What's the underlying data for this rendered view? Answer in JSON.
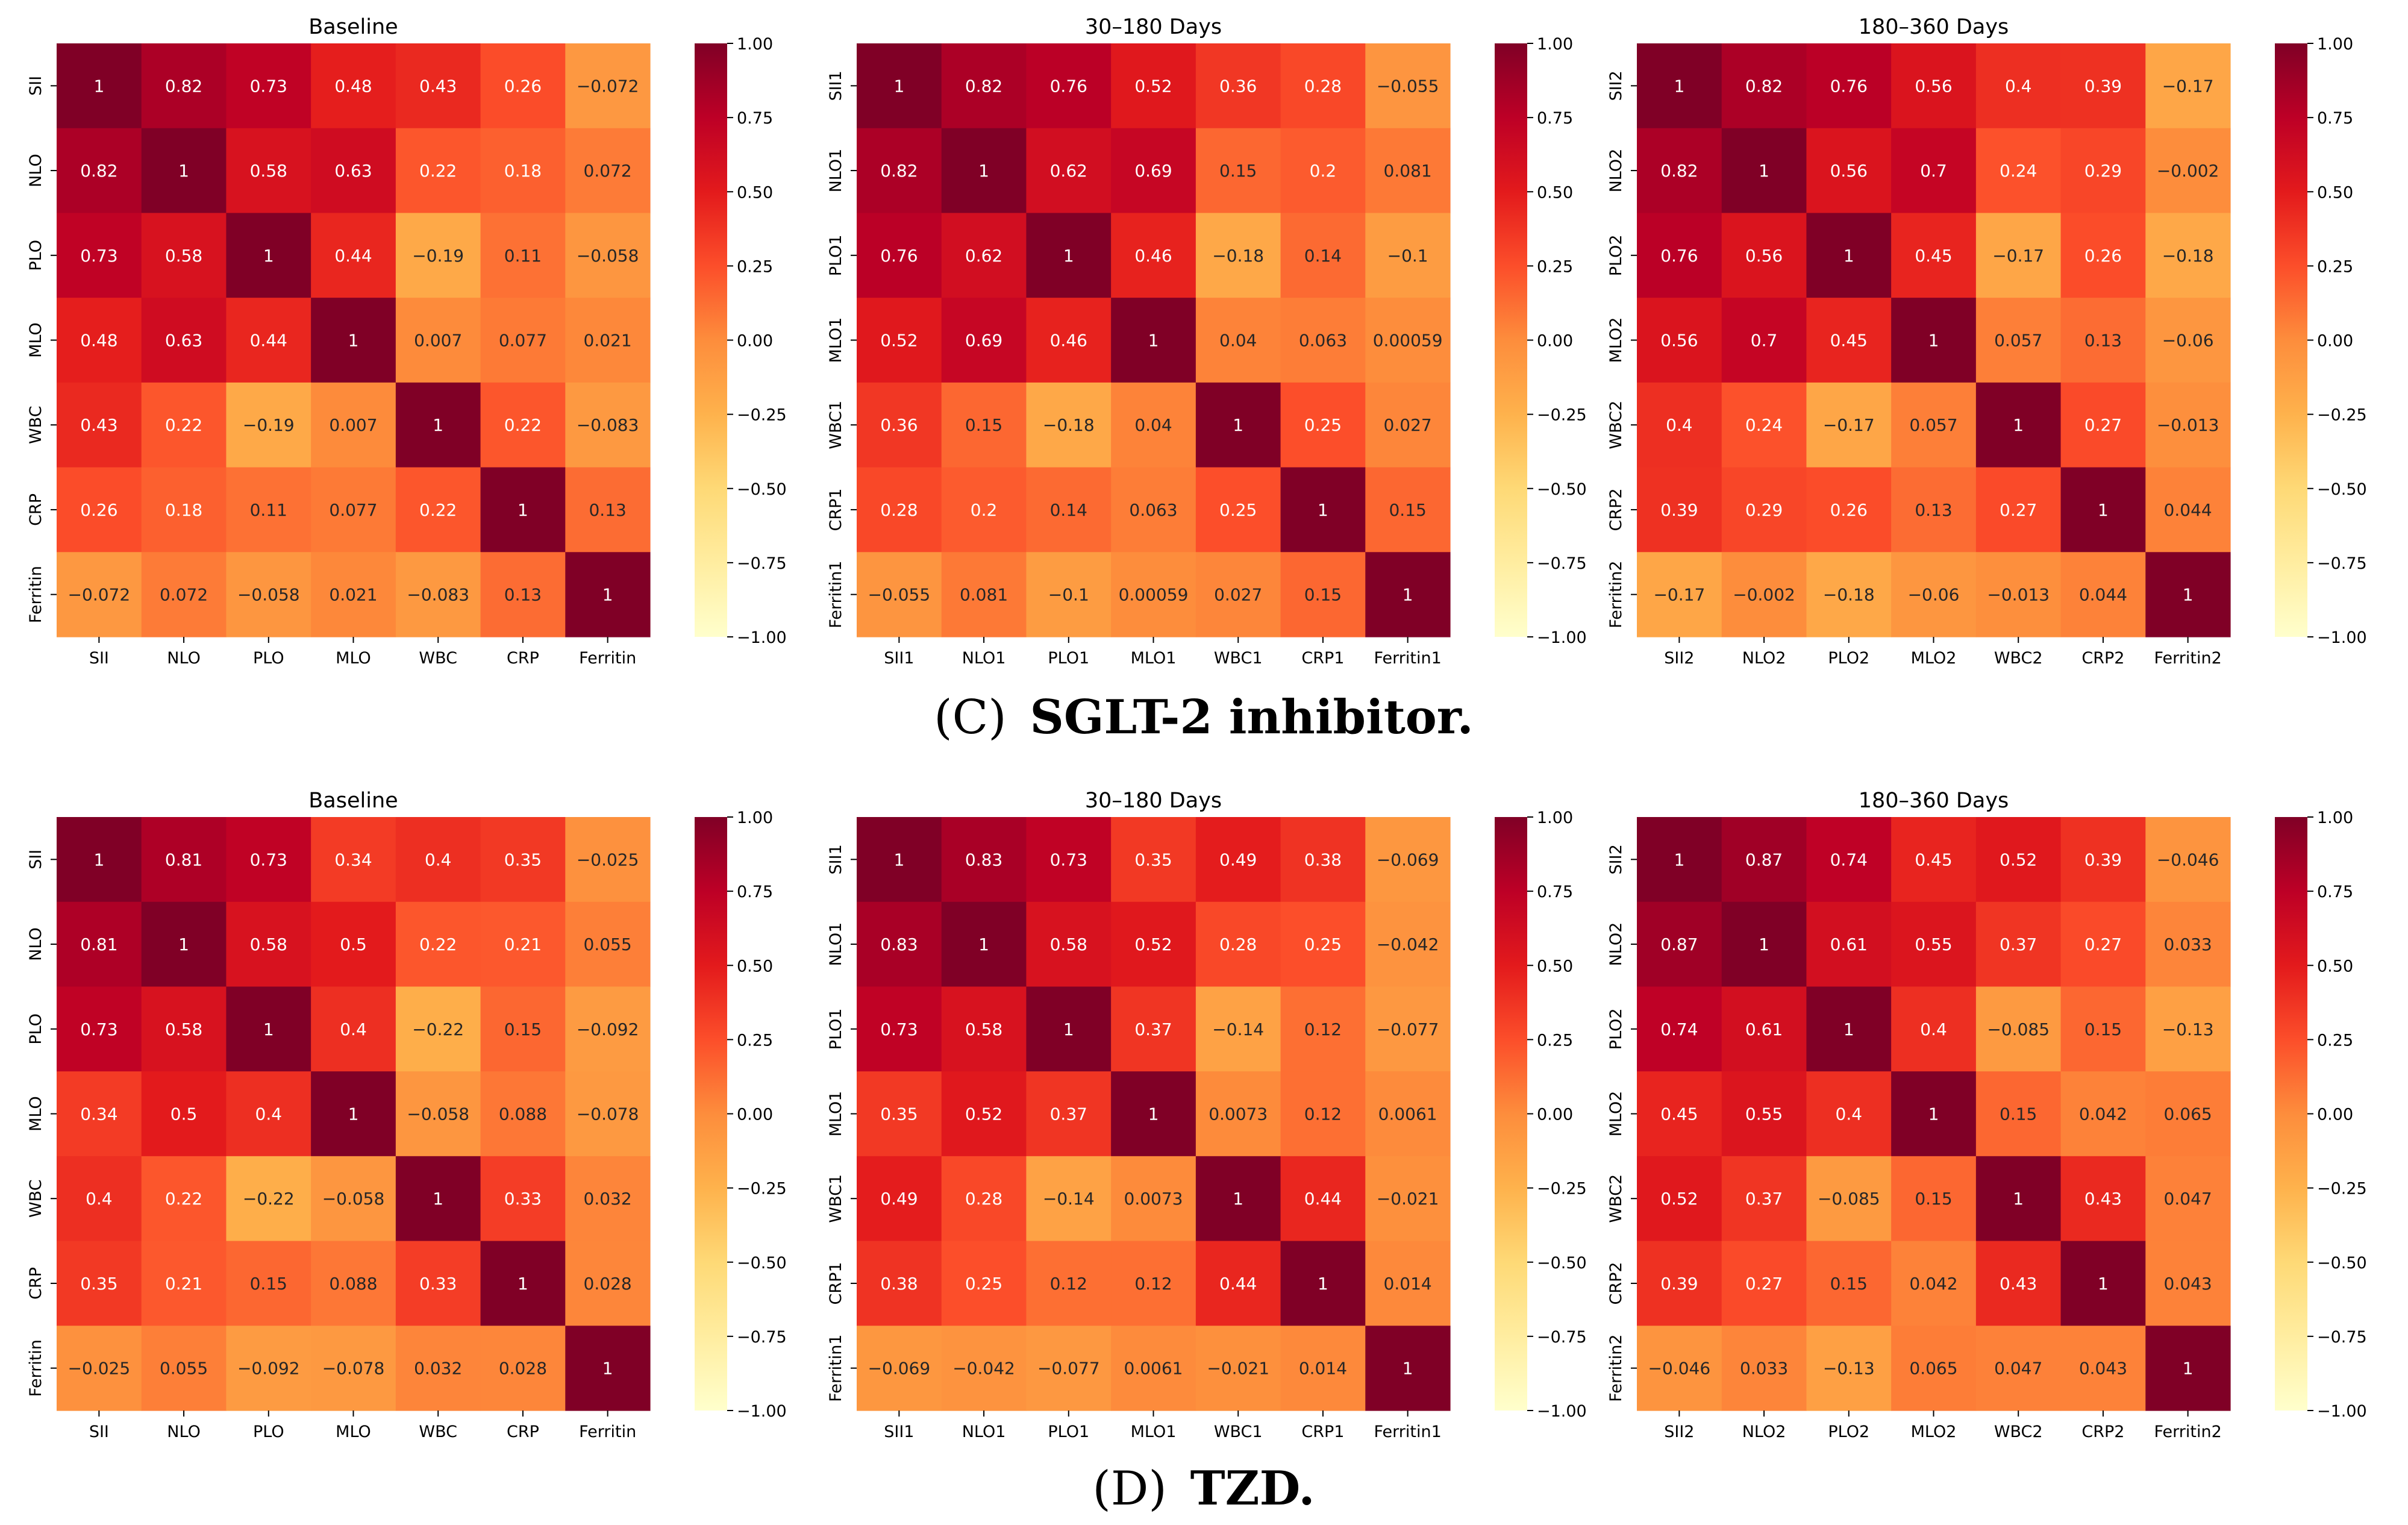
{
  "chart_data": [
    {
      "type": "heatmap",
      "title": "Baseline",
      "panel": "C",
      "rows": [
        "SII",
        "NLO",
        "PLO",
        "MLO",
        "WBC",
        "CRP",
        "Ferritin"
      ],
      "columns": [
        "SII",
        "NLO",
        "PLO",
        "MLO",
        "WBC",
        "CRP",
        "Ferritin"
      ],
      "values": [
        [
          1,
          0.82,
          0.73,
          0.48,
          0.43,
          0.26,
          -0.072
        ],
        [
          0.82,
          1,
          0.58,
          0.63,
          0.22,
          0.18,
          0.072
        ],
        [
          0.73,
          0.58,
          1,
          0.44,
          -0.19,
          0.11,
          -0.058
        ],
        [
          0.48,
          0.63,
          0.44,
          1,
          0.007,
          0.077,
          0.021
        ],
        [
          0.43,
          0.22,
          -0.19,
          0.007,
          1,
          0.22,
          -0.083
        ],
        [
          0.26,
          0.18,
          0.11,
          0.077,
          0.22,
          1,
          0.13
        ],
        [
          -0.072,
          0.072,
          -0.058,
          0.021,
          -0.083,
          0.13,
          1
        ]
      ],
      "labels": [
        [
          "1",
          "0.82",
          "0.73",
          "0.48",
          "0.43",
          "0.26",
          "−0.072"
        ],
        [
          "0.82",
          "1",
          "0.58",
          "0.63",
          "0.22",
          "0.18",
          "0.072"
        ],
        [
          "0.73",
          "0.58",
          "1",
          "0.44",
          "−0.19",
          "0.11",
          "−0.058"
        ],
        [
          "0.48",
          "0.63",
          "0.44",
          "1",
          "0.007",
          "0.077",
          "0.021"
        ],
        [
          "0.43",
          "0.22",
          "−0.19",
          "0.007",
          "1",
          "0.22",
          "−0.083"
        ],
        [
          "0.26",
          "0.18",
          "0.11",
          "0.077",
          "0.22",
          "1",
          "0.13"
        ],
        [
          "−0.072",
          "0.072",
          "−0.058",
          "0.021",
          "−0.083",
          "0.13",
          "1"
        ]
      ]
    },
    {
      "type": "heatmap",
      "title": "30–180 Days",
      "panel": "C",
      "rows": [
        "SII1",
        "NLO1",
        "PLO1",
        "MLO1",
        "WBC1",
        "CRP1",
        "Ferritin1"
      ],
      "columns": [
        "SII1",
        "NLO1",
        "PLO1",
        "MLO1",
        "WBC1",
        "CRP1",
        "Ferritin1"
      ],
      "values": [
        [
          1,
          0.82,
          0.76,
          0.52,
          0.36,
          0.28,
          -0.055
        ],
        [
          0.82,
          1,
          0.62,
          0.69,
          0.15,
          0.2,
          0.081
        ],
        [
          0.76,
          0.62,
          1,
          0.46,
          -0.18,
          0.14,
          -0.1
        ],
        [
          0.52,
          0.69,
          0.46,
          1,
          0.04,
          0.063,
          0.00059
        ],
        [
          0.36,
          0.15,
          -0.18,
          0.04,
          1,
          0.25,
          0.027
        ],
        [
          0.28,
          0.2,
          0.14,
          0.063,
          0.25,
          1,
          0.15
        ],
        [
          -0.055,
          0.081,
          -0.1,
          0.00059,
          0.027,
          0.15,
          1
        ]
      ],
      "labels": [
        [
          "1",
          "0.82",
          "0.76",
          "0.52",
          "0.36",
          "0.28",
          "−0.055"
        ],
        [
          "0.82",
          "1",
          "0.62",
          "0.69",
          "0.15",
          "0.2",
          "0.081"
        ],
        [
          "0.76",
          "0.62",
          "1",
          "0.46",
          "−0.18",
          "0.14",
          "−0.1"
        ],
        [
          "0.52",
          "0.69",
          "0.46",
          "1",
          "0.04",
          "0.063",
          "0.00059"
        ],
        [
          "0.36",
          "0.15",
          "−0.18",
          "0.04",
          "1",
          "0.25",
          "0.027"
        ],
        [
          "0.28",
          "0.2",
          "0.14",
          "0.063",
          "0.25",
          "1",
          "0.15"
        ],
        [
          "−0.055",
          "0.081",
          "−0.1",
          "0.00059",
          "0.027",
          "0.15",
          "1"
        ]
      ]
    },
    {
      "type": "heatmap",
      "title": "180–360 Days",
      "panel": "C",
      "rows": [
        "SII2",
        "NLO2",
        "PLO2",
        "MLO2",
        "WBC2",
        "CRP2",
        "Ferritin2"
      ],
      "columns": [
        "SII2",
        "NLO2",
        "PLO2",
        "MLO2",
        "WBC2",
        "CRP2",
        "Ferritin2"
      ],
      "values": [
        [
          1,
          0.82,
          0.76,
          0.56,
          0.4,
          0.39,
          -0.17
        ],
        [
          0.82,
          1,
          0.56,
          0.7,
          0.24,
          0.29,
          -0.002
        ],
        [
          0.76,
          0.56,
          1,
          0.45,
          -0.17,
          0.26,
          -0.18
        ],
        [
          0.56,
          0.7,
          0.45,
          1,
          0.057,
          0.13,
          -0.06
        ],
        [
          0.4,
          0.24,
          -0.17,
          0.057,
          1,
          0.27,
          -0.013
        ],
        [
          0.39,
          0.29,
          0.26,
          0.13,
          0.27,
          1,
          0.044
        ],
        [
          -0.17,
          -0.002,
          -0.18,
          -0.06,
          -0.013,
          0.044,
          1
        ]
      ],
      "labels": [
        [
          "1",
          "0.82",
          "0.76",
          "0.56",
          "0.4",
          "0.39",
          "−0.17"
        ],
        [
          "0.82",
          "1",
          "0.56",
          "0.7",
          "0.24",
          "0.29",
          "−0.002"
        ],
        [
          "0.76",
          "0.56",
          "1",
          "0.45",
          "−0.17",
          "0.26",
          "−0.18"
        ],
        [
          "0.56",
          "0.7",
          "0.45",
          "1",
          "0.057",
          "0.13",
          "−0.06"
        ],
        [
          "0.4",
          "0.24",
          "−0.17",
          "0.057",
          "1",
          "0.27",
          "−0.013"
        ],
        [
          "0.39",
          "0.29",
          "0.26",
          "0.13",
          "0.27",
          "1",
          "0.044"
        ],
        [
          "−0.17",
          "−0.002",
          "−0.18",
          "−0.06",
          "−0.013",
          "0.044",
          "1"
        ]
      ]
    },
    {
      "type": "heatmap",
      "title": "Baseline",
      "panel": "D",
      "rows": [
        "SII",
        "NLO",
        "PLO",
        "MLO",
        "WBC",
        "CRP",
        "Ferritin"
      ],
      "columns": [
        "SII",
        "NLO",
        "PLO",
        "MLO",
        "WBC",
        "CRP",
        "Ferritin"
      ],
      "values": [
        [
          1,
          0.81,
          0.73,
          0.34,
          0.4,
          0.35,
          -0.025
        ],
        [
          0.81,
          1,
          0.58,
          0.5,
          0.22,
          0.21,
          0.055
        ],
        [
          0.73,
          0.58,
          1,
          0.4,
          -0.22,
          0.15,
          -0.092
        ],
        [
          0.34,
          0.5,
          0.4,
          1,
          -0.058,
          0.088,
          -0.078
        ],
        [
          0.4,
          0.22,
          -0.22,
          -0.058,
          1,
          0.33,
          0.032
        ],
        [
          0.35,
          0.21,
          0.15,
          0.088,
          0.33,
          1,
          0.028
        ],
        [
          -0.025,
          0.055,
          -0.092,
          -0.078,
          0.032,
          0.028,
          1
        ]
      ],
      "labels": [
        [
          "1",
          "0.81",
          "0.73",
          "0.34",
          "0.4",
          "0.35",
          "−0.025"
        ],
        [
          "0.81",
          "1",
          "0.58",
          "0.5",
          "0.22",
          "0.21",
          "0.055"
        ],
        [
          "0.73",
          "0.58",
          "1",
          "0.4",
          "−0.22",
          "0.15",
          "−0.092"
        ],
        [
          "0.34",
          "0.5",
          "0.4",
          "1",
          "−0.058",
          "0.088",
          "−0.078"
        ],
        [
          "0.4",
          "0.22",
          "−0.22",
          "−0.058",
          "1",
          "0.33",
          "0.032"
        ],
        [
          "0.35",
          "0.21",
          "0.15",
          "0.088",
          "0.33",
          "1",
          "0.028"
        ],
        [
          "−0.025",
          "0.055",
          "−0.092",
          "−0.078",
          "0.032",
          "0.028",
          "1"
        ]
      ]
    },
    {
      "type": "heatmap",
      "title": "30–180 Days",
      "panel": "D",
      "rows": [
        "SII1",
        "NLO1",
        "PLO1",
        "MLO1",
        "WBC1",
        "CRP1",
        "Ferritin1"
      ],
      "columns": [
        "SII1",
        "NLO1",
        "PLO1",
        "MLO1",
        "WBC1",
        "CRP1",
        "Ferritin1"
      ],
      "values": [
        [
          1,
          0.83,
          0.73,
          0.35,
          0.49,
          0.38,
          -0.069
        ],
        [
          0.83,
          1,
          0.58,
          0.52,
          0.28,
          0.25,
          -0.042
        ],
        [
          0.73,
          0.58,
          1,
          0.37,
          -0.14,
          0.12,
          -0.077
        ],
        [
          0.35,
          0.52,
          0.37,
          1,
          0.0073,
          0.12,
          0.0061
        ],
        [
          0.49,
          0.28,
          -0.14,
          0.0073,
          1,
          0.44,
          -0.021
        ],
        [
          0.38,
          0.25,
          0.12,
          0.12,
          0.44,
          1,
          0.014
        ],
        [
          -0.069,
          -0.042,
          -0.077,
          0.0061,
          -0.021,
          0.014,
          1
        ]
      ],
      "labels": [
        [
          "1",
          "0.83",
          "0.73",
          "0.35",
          "0.49",
          "0.38",
          "−0.069"
        ],
        [
          "0.83",
          "1",
          "0.58",
          "0.52",
          "0.28",
          "0.25",
          "−0.042"
        ],
        [
          "0.73",
          "0.58",
          "1",
          "0.37",
          "−0.14",
          "0.12",
          "−0.077"
        ],
        [
          "0.35",
          "0.52",
          "0.37",
          "1",
          "0.0073",
          "0.12",
          "0.0061"
        ],
        [
          "0.49",
          "0.28",
          "−0.14",
          "0.0073",
          "1",
          "0.44",
          "−0.021"
        ],
        [
          "0.38",
          "0.25",
          "0.12",
          "0.12",
          "0.44",
          "1",
          "0.014"
        ],
        [
          "−0.069",
          "−0.042",
          "−0.077",
          "0.0061",
          "−0.021",
          "0.014",
          "1"
        ]
      ]
    },
    {
      "type": "heatmap",
      "title": "180–360 Days",
      "panel": "D",
      "rows": [
        "SII2",
        "NLO2",
        "PLO2",
        "MLO2",
        "WBC2",
        "CRP2",
        "Ferritin2"
      ],
      "columns": [
        "SII2",
        "NLO2",
        "PLO2",
        "MLO2",
        "WBC2",
        "CRP2",
        "Ferritin2"
      ],
      "values": [
        [
          1,
          0.87,
          0.74,
          0.45,
          0.52,
          0.39,
          -0.046
        ],
        [
          0.87,
          1,
          0.61,
          0.55,
          0.37,
          0.27,
          0.033
        ],
        [
          0.74,
          0.61,
          1,
          0.4,
          -0.085,
          0.15,
          -0.13
        ],
        [
          0.45,
          0.55,
          0.4,
          1,
          0.15,
          0.042,
          0.065
        ],
        [
          0.52,
          0.37,
          -0.085,
          0.15,
          1,
          0.43,
          0.047
        ],
        [
          0.39,
          0.27,
          0.15,
          0.042,
          0.43,
          1,
          0.043
        ],
        [
          -0.046,
          0.033,
          -0.13,
          0.065,
          0.047,
          0.043,
          1
        ]
      ],
      "labels": [
        [
          "1",
          "0.87",
          "0.74",
          "0.45",
          "0.52",
          "0.39",
          "−0.046"
        ],
        [
          "0.87",
          "1",
          "0.61",
          "0.55",
          "0.37",
          "0.27",
          "0.033"
        ],
        [
          "0.74",
          "0.61",
          "1",
          "0.4",
          "−0.085",
          "0.15",
          "−0.13"
        ],
        [
          "0.45",
          "0.55",
          "0.4",
          "1",
          "0.15",
          "0.042",
          "0.065"
        ],
        [
          "0.52",
          "0.37",
          "−0.085",
          "0.15",
          "1",
          "0.43",
          "0.047"
        ],
        [
          "0.39",
          "0.27",
          "0.15",
          "0.042",
          "0.43",
          "1",
          "0.043"
        ],
        [
          "−0.046",
          "0.033",
          "−0.13",
          "0.065",
          "0.047",
          "0.043",
          "1"
        ]
      ]
    }
  ],
  "colorbar": {
    "colormap": "YlOrRd",
    "vmin": -1,
    "vmax": 1,
    "ticks": [
      1,
      0.75,
      0.5,
      0.25,
      0,
      -0.25,
      -0.5,
      -0.75,
      -1
    ],
    "tick_labels": [
      "1.00",
      "0.75",
      "0.50",
      "0.25",
      "0.00",
      "−0.25",
      "−0.50",
      "−0.75",
      "−1.00"
    ]
  },
  "captions": {
    "c_letter": "(C)",
    "c_text": "SGLT-2 inhibitor.",
    "d_letter": "(D)",
    "d_text": "TZD."
  }
}
